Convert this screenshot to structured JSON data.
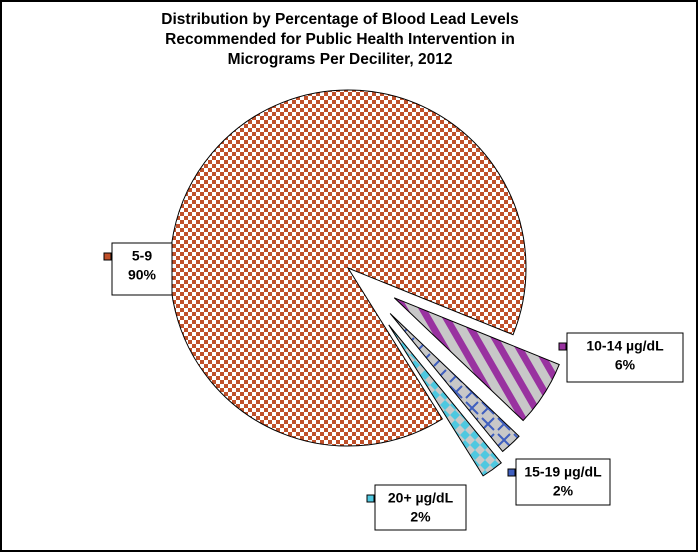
{
  "chart_data": {
    "type": "pie",
    "title": [
      "Distribution by Percentage of Blood Lead Levels",
      "Recommended for Public Health Intervention in",
      "Micrograms Per Deciliter, 2012"
    ],
    "categories": [
      "5-9",
      "10-14 µg/dL",
      "15-19 µg/dL",
      "20+ µg/dL"
    ],
    "values": [
      90,
      6,
      2,
      2
    ],
    "value_labels": [
      "90%",
      "6%",
      "2%",
      "2%"
    ],
    "colors": [
      "#c0502a",
      "#9932a0",
      "#3f5fbf",
      "#4fc8e0"
    ]
  }
}
